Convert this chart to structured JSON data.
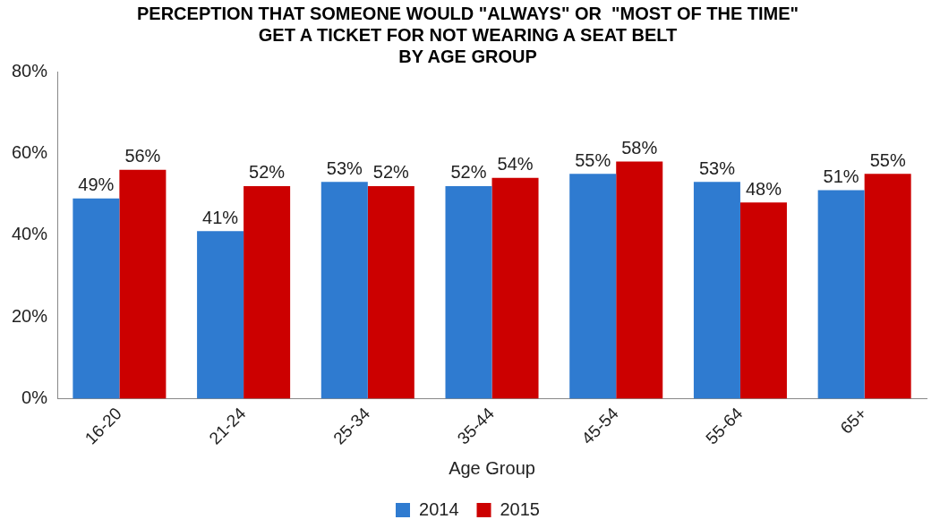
{
  "chart_data": {
    "type": "bar",
    "title": "PERCEPTION THAT SOMEONE WOULD \"ALWAYS\" OR  \"MOST OF THE TIME\"\nGET A TICKET FOR NOT WEARING A SEAT BELT\nBY AGE GROUP",
    "xlabel": "Age Group",
    "categories": [
      "16-20",
      "21-24",
      "25-34",
      "35-44",
      "45-54",
      "55-64",
      "65+"
    ],
    "series": [
      {
        "name": "2014",
        "color": "#2f7bd0",
        "values": [
          49,
          41,
          53,
          52,
          55,
          53,
          51
        ],
        "value_labels": [
          "49%",
          "41%",
          "53%",
          "52%",
          "55%",
          "53%",
          "51%"
        ]
      },
      {
        "name": "2015",
        "color": "#cc0000",
        "values": [
          56,
          52,
          52,
          54,
          58,
          48,
          55
        ],
        "value_labels": [
          "56%",
          "52%",
          "52%",
          "54%",
          "58%",
          "48%",
          "55%"
        ]
      }
    ],
    "ylim": [
      0,
      80
    ],
    "yticks": [
      {
        "value": 0,
        "label": "0%"
      },
      {
        "value": 20,
        "label": "20%"
      },
      {
        "value": 40,
        "label": "40%"
      },
      {
        "value": 60,
        "label": "60%"
      },
      {
        "value": 80,
        "label": "80%"
      }
    ],
    "grid": false,
    "legend": "bottom"
  }
}
